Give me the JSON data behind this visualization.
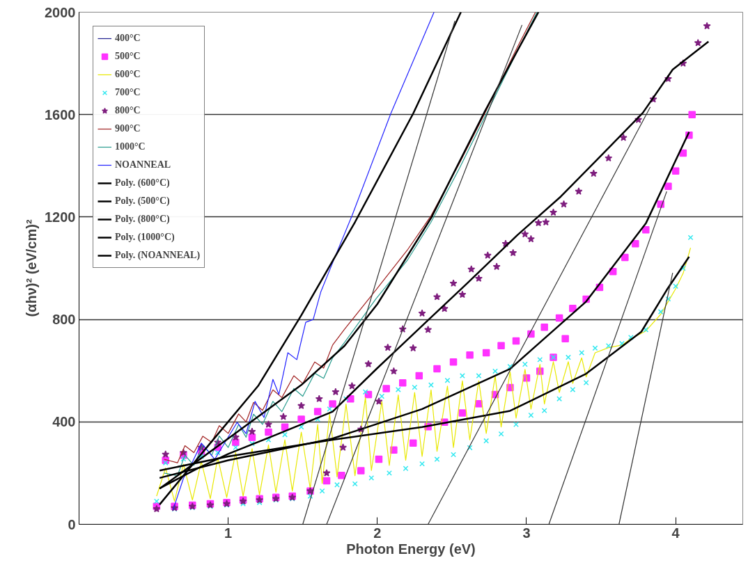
{
  "chart_data": {
    "type": "line",
    "xlabel": "Photon Energy (eV)",
    "ylabel": "(αhν)² (eV/cm)²",
    "xlim": [
      0,
      4.45
    ],
    "ylim": [
      0,
      2000
    ],
    "xticks": [
      1,
      2,
      3,
      4
    ],
    "yticks": [
      0,
      400,
      800,
      1200,
      1600,
      2000
    ],
    "grid": "y",
    "legend": "top left",
    "series": [
      {
        "name": "400°C",
        "color": "#1f1f8f"
      },
      {
        "name": "500°C",
        "color": "#ff33ff",
        "type": "scatter",
        "marker": "square",
        "x": [
          0.52,
          0.58,
          0.64,
          0.7,
          0.76,
          0.82,
          0.88,
          0.93,
          0.99,
          1.05,
          1.1,
          1.16,
          1.21,
          1.27,
          1.32,
          1.38,
          1.43,
          1.49,
          1.55,
          1.6,
          1.66,
          1.7,
          1.76,
          1.82,
          1.89,
          1.94,
          2.01,
          2.06,
          2.11,
          2.17,
          2.24,
          2.28,
          2.34,
          2.4,
          2.45,
          2.51,
          2.57,
          2.62,
          2.68,
          2.73,
          2.79,
          2.83,
          2.89,
          2.93,
          3.0,
          3.03,
          3.09,
          3.12,
          3.18,
          3.22,
          3.26,
          3.31,
          3.4,
          3.49,
          3.58,
          3.66,
          3.73,
          3.8,
          3.9,
          3.95,
          4.0,
          4.05,
          4.09,
          4.11
        ],
        "values": [
          70,
          250,
          70,
          270,
          75,
          285,
          80,
          300,
          85,
          320,
          95,
          340,
          100,
          360,
          105,
          380,
          110,
          410,
          130,
          440,
          170,
          470,
          191,
          490,
          209,
          507,
          254,
          530,
          290,
          552,
          317,
          580,
          381,
          607,
          399,
          634,
          435,
          661,
          471,
          670,
          507,
          698,
          534,
          716,
          571,
          743,
          598,
          770,
          652,
          806,
          725,
          843,
          879,
          925,
          987,
          1042,
          1096,
          1150,
          1250,
          1320,
          1380,
          1450,
          1520,
          1600
        ]
      },
      {
        "name": "600°C",
        "color": "#e8e800",
        "type": "line",
        "x": [
          0.52,
          0.58,
          0.64,
          0.7,
          0.76,
          0.82,
          0.88,
          0.93,
          0.99,
          1.05,
          1.1,
          1.16,
          1.21,
          1.27,
          1.32,
          1.38,
          1.43,
          1.49,
          1.55,
          1.6,
          1.63,
          1.68,
          1.73,
          1.79,
          1.85,
          1.92,
          1.96,
          2.03,
          2.08,
          2.14,
          2.19,
          2.25,
          2.3,
          2.36,
          2.4,
          2.47,
          2.51,
          2.57,
          2.62,
          2.68,
          2.73,
          2.79,
          2.83,
          2.89,
          2.93,
          2.99,
          3.03,
          3.09,
          3.12,
          3.18,
          3.22,
          3.28,
          3.31,
          3.37,
          3.4,
          3.46,
          3.55,
          3.64,
          3.7,
          3.8,
          3.9,
          3.95,
          4.0,
          4.05,
          4.1
        ],
        "values": [
          110,
          220,
          90,
          235,
          95,
          245,
          100,
          260,
          105,
          280,
          110,
          295,
          115,
          310,
          125,
          330,
          130,
          360,
          140,
          390,
          160,
          430,
          185,
          470,
          190,
          495,
          210,
          480,
          230,
          505,
          250,
          515,
          265,
          525,
          285,
          540,
          300,
          560,
          330,
          560,
          355,
          580,
          380,
          595,
          415,
          605,
          450,
          625,
          470,
          635,
          515,
          635,
          550,
          650,
          575,
          670,
          690,
          700,
          725,
          755,
          820,
          870,
          920,
          980,
          1080
        ]
      },
      {
        "name": "700°C",
        "color": "#33e8f0",
        "type": "scatter",
        "marker": "cross",
        "x": [
          0.52,
          0.58,
          0.64,
          0.7,
          0.76,
          0.82,
          0.88,
          0.93,
          0.99,
          1.05,
          1.1,
          1.16,
          1.21,
          1.27,
          1.32,
          1.38,
          1.43,
          1.49,
          1.55,
          1.6,
          1.63,
          1.68,
          1.73,
          1.79,
          1.85,
          1.92,
          1.96,
          2.03,
          2.08,
          2.14,
          2.19,
          2.25,
          2.3,
          2.36,
          2.4,
          2.47,
          2.51,
          2.57,
          2.62,
          2.68,
          2.73,
          2.79,
          2.83,
          2.89,
          2.93,
          2.99,
          3.03,
          3.09,
          3.12,
          3.18,
          3.22,
          3.28,
          3.31,
          3.37,
          3.4,
          3.46,
          3.55,
          3.64,
          3.7,
          3.8,
          3.9,
          3.95,
          4.0,
          4.05,
          4.1
        ],
        "values": [
          90,
          240,
          60,
          255,
          65,
          265,
          70,
          280,
          75,
          300,
          80,
          315,
          85,
          330,
          95,
          350,
          100,
          380,
          110,
          410,
          130,
          450,
          154,
          490,
          158,
          517,
          181,
          500,
          200,
          526,
          218,
          535,
          236,
          544,
          254,
          562,
          272,
          580,
          299,
          580,
          326,
          598,
          353,
          616,
          390,
          625,
          426,
          643,
          444,
          652,
          490,
          652,
          526,
          670,
          553,
          688,
          697,
          706,
          730,
          760,
          830,
          880,
          930,
          1000,
          1120
        ]
      },
      {
        "name": "800°C",
        "color": "#7f1f7f",
        "type": "scatter",
        "marker": "star",
        "x": [
          0.52,
          0.58,
          0.64,
          0.7,
          0.76,
          0.82,
          0.88,
          0.93,
          0.99,
          1.05,
          1.1,
          1.16,
          1.21,
          1.27,
          1.32,
          1.37,
          1.43,
          1.49,
          1.55,
          1.61,
          1.66,
          1.72,
          1.77,
          1.83,
          1.89,
          1.94,
          2.01,
          2.07,
          2.11,
          2.17,
          2.24,
          2.3,
          2.34,
          2.4,
          2.45,
          2.51,
          2.57,
          2.63,
          2.68,
          2.74,
          2.8,
          2.86,
          2.91,
          2.99,
          3.03,
          3.08,
          3.13,
          3.18,
          3.25,
          3.35,
          3.45,
          3.55,
          3.65,
          3.75,
          3.85,
          3.95,
          4.05,
          4.15,
          4.21
        ],
        "values": [
          60,
          273,
          64,
          280,
          70,
          300,
          75,
          320,
          80,
          340,
          90,
          362,
          95,
          390,
          100,
          420,
          105,
          463,
          130,
          490,
          200,
          517,
          300,
          540,
          371,
          626,
          480,
          690,
          598,
          762,
          688,
          824,
          760,
          888,
          842,
          941,
          897,
          996,
          960,
          1050,
          1006,
          1096,
          1060,
          1133,
          1114,
          1177,
          1180,
          1218,
          1250,
          1300,
          1370,
          1430,
          1510,
          1580,
          1660,
          1740,
          1800,
          1880,
          1946
        ]
      },
      {
        "name": "900°C",
        "color": "#a02020",
        "type": "line",
        "x": [
          0.57,
          0.66,
          0.71,
          0.77,
          0.83,
          0.89,
          0.94,
          1.0,
          1.07,
          1.12,
          1.17,
          1.23,
          1.3,
          1.36,
          1.44,
          1.5,
          1.58,
          1.64,
          1.7,
          1.78,
          1.99,
          2.2,
          2.36,
          2.55,
          2.72,
          2.94,
          3.06
        ],
        "values": [
          254,
          240,
          307,
          280,
          344,
          320,
          385,
          355,
          431,
          400,
          476,
          445,
          525,
          495,
          580,
          550,
          634,
          610,
          700,
          762,
          915,
          1070,
          1205,
          1410,
          1604,
          1865,
          2000
        ]
      },
      {
        "name": "1000°C",
        "color": "#2a9d8f",
        "type": "line",
        "x": [
          0.57,
          0.66,
          0.71,
          0.77,
          0.83,
          0.89,
          0.94,
          1.0,
          1.07,
          1.12,
          1.17,
          1.23,
          1.3,
          1.36,
          1.44,
          1.5,
          1.58,
          1.64,
          1.7,
          1.78,
          1.99,
          2.2,
          2.36,
          2.55,
          2.72,
          2.94,
          3.07
        ],
        "values": [
          200,
          190,
          270,
          230,
          310,
          270,
          345,
          300,
          390,
          340,
          430,
          390,
          480,
          440,
          530,
          500,
          590,
          570,
          650,
          710,
          880,
          1030,
          1180,
          1390,
          1590,
          1850,
          2000
        ]
      },
      {
        "name": "NOANNEAL",
        "color": "#2020ff",
        "type": "line",
        "x": [
          0.63,
          0.7,
          0.75,
          0.82,
          0.91,
          1.06,
          1.12,
          1.18,
          1.24,
          1.3,
          1.34,
          1.4,
          1.46,
          1.52,
          1.57,
          1.62,
          1.72,
          1.83,
          2.09,
          2.38
        ],
        "values": [
          56,
          180,
          230,
          317,
          254,
          398,
          354,
          480,
          417,
          566,
          507,
          670,
          643,
          789,
          800,
          906,
          1050,
          1205,
          1604,
          2000
        ]
      },
      {
        "name": "Poly. (600°C)",
        "color": "#000000",
        "type": "line",
        "x": [
          0.54,
          1.0,
          1.7,
          2.3,
          2.89,
          3.4,
          3.77,
          3.94,
          4.09
        ],
        "values": [
          210,
          265,
          330,
          380,
          443,
          588,
          752,
          915,
          1045
        ]
      },
      {
        "name": "Poly. (500°C)",
        "color": "#000000",
        "type": "line",
        "x": [
          0.54,
          1.0,
          1.7,
          2.3,
          2.89,
          3.4,
          3.8,
          4.09
        ],
        "values": [
          181,
          250,
          335,
          450,
          607,
          870,
          1175,
          1532
        ]
      },
      {
        "name": "Poly. (800°C)",
        "color": "#000000",
        "type": "line",
        "x": [
          0.54,
          0.8,
          1.0,
          1.3,
          1.7,
          2.0,
          2.34,
          2.6,
          2.94,
          3.23,
          3.5,
          3.78,
          3.98,
          4.22
        ],
        "values": [
          140,
          220,
          275,
          345,
          440,
          610,
          797,
          940,
          1130,
          1280,
          1440,
          1607,
          1776,
          1885
        ]
      },
      {
        "name": "Poly. (1000°C)",
        "color": "#000000",
        "type": "line",
        "x": [
          0.54,
          1.0,
          1.49,
          1.78,
          2.0,
          2.36,
          2.72,
          2.93,
          3.08
        ],
        "values": [
          139,
          335,
          544,
          697,
          860,
          1196,
          1612,
          1840,
          2000
        ]
      },
      {
        "name": "Poly. (NOANNEAL)",
        "color": "#000000",
        "type": "line",
        "x": [
          0.54,
          0.7,
          0.88,
          1.2,
          1.49,
          1.85,
          2.24,
          2.56
        ],
        "values": [
          77,
          190,
          317,
          540,
          816,
          1180,
          1604,
          2000
        ]
      },
      {
        "color": "#333333",
        "type": "line",
        "x": [
          1.5,
          2.52
        ],
        "values": [
          0,
          1966
        ]
      },
      {
        "color": "#333333",
        "type": "line",
        "x": [
          1.66,
          2.97
        ],
        "values": [
          0,
          1950
        ]
      },
      {
        "color": "#333333",
        "type": "line",
        "x": [
          2.34,
          3.83
        ],
        "values": [
          0,
          1630
        ]
      },
      {
        "color": "#333333",
        "type": "line",
        "x": [
          3.15,
          3.94
        ],
        "values": [
          0,
          1300
        ]
      },
      {
        "color": "#333333",
        "type": "line",
        "x": [
          3.62,
          3.98
        ],
        "values": [
          0,
          982
        ]
      }
    ]
  }
}
